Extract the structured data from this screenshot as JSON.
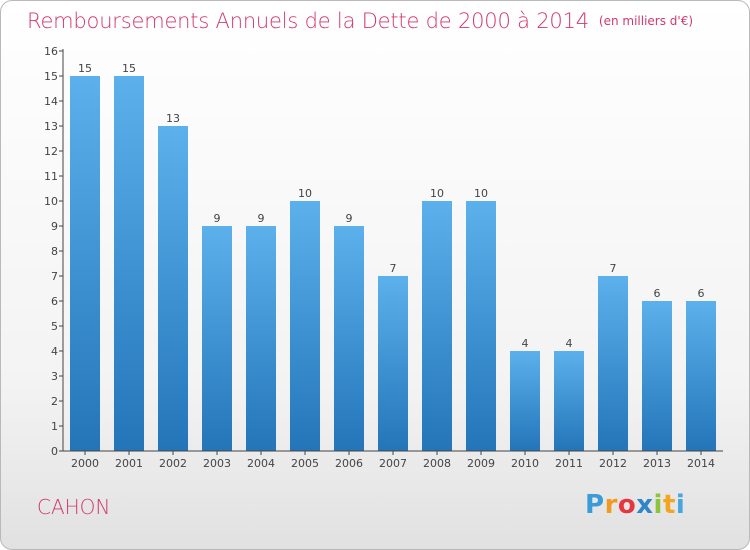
{
  "chart_data": {
    "type": "bar",
    "title": "Remboursements Annuels de la Dette de 2000 à 2014",
    "unit_label": "(en milliers d'€)",
    "categories": [
      "2000",
      "2001",
      "2002",
      "2003",
      "2004",
      "2005",
      "2006",
      "2007",
      "2008",
      "2009",
      "2010",
      "2011",
      "2012",
      "2013",
      "2014"
    ],
    "values": [
      15,
      15,
      13,
      9,
      9,
      10,
      9,
      7,
      10,
      10,
      4,
      4,
      7,
      6,
      6
    ],
    "ylim": [
      0,
      16
    ],
    "yticks": [
      0,
      1,
      2,
      3,
      4,
      5,
      6,
      7,
      8,
      9,
      10,
      11,
      12,
      13,
      14,
      15,
      16
    ],
    "xlabel": "",
    "ylabel": "",
    "grid": false,
    "bar_color": "#3d95d8"
  },
  "commune": "CAHON",
  "brand": {
    "letters": [
      "P",
      "r",
      "o",
      "x",
      "i",
      "t",
      "i"
    ],
    "colors": [
      "#3b9bd9",
      "#f09a22",
      "#e3363f",
      "#2e86c8",
      "#8cc43c",
      "#f2a51f",
      "#46a7de"
    ]
  }
}
